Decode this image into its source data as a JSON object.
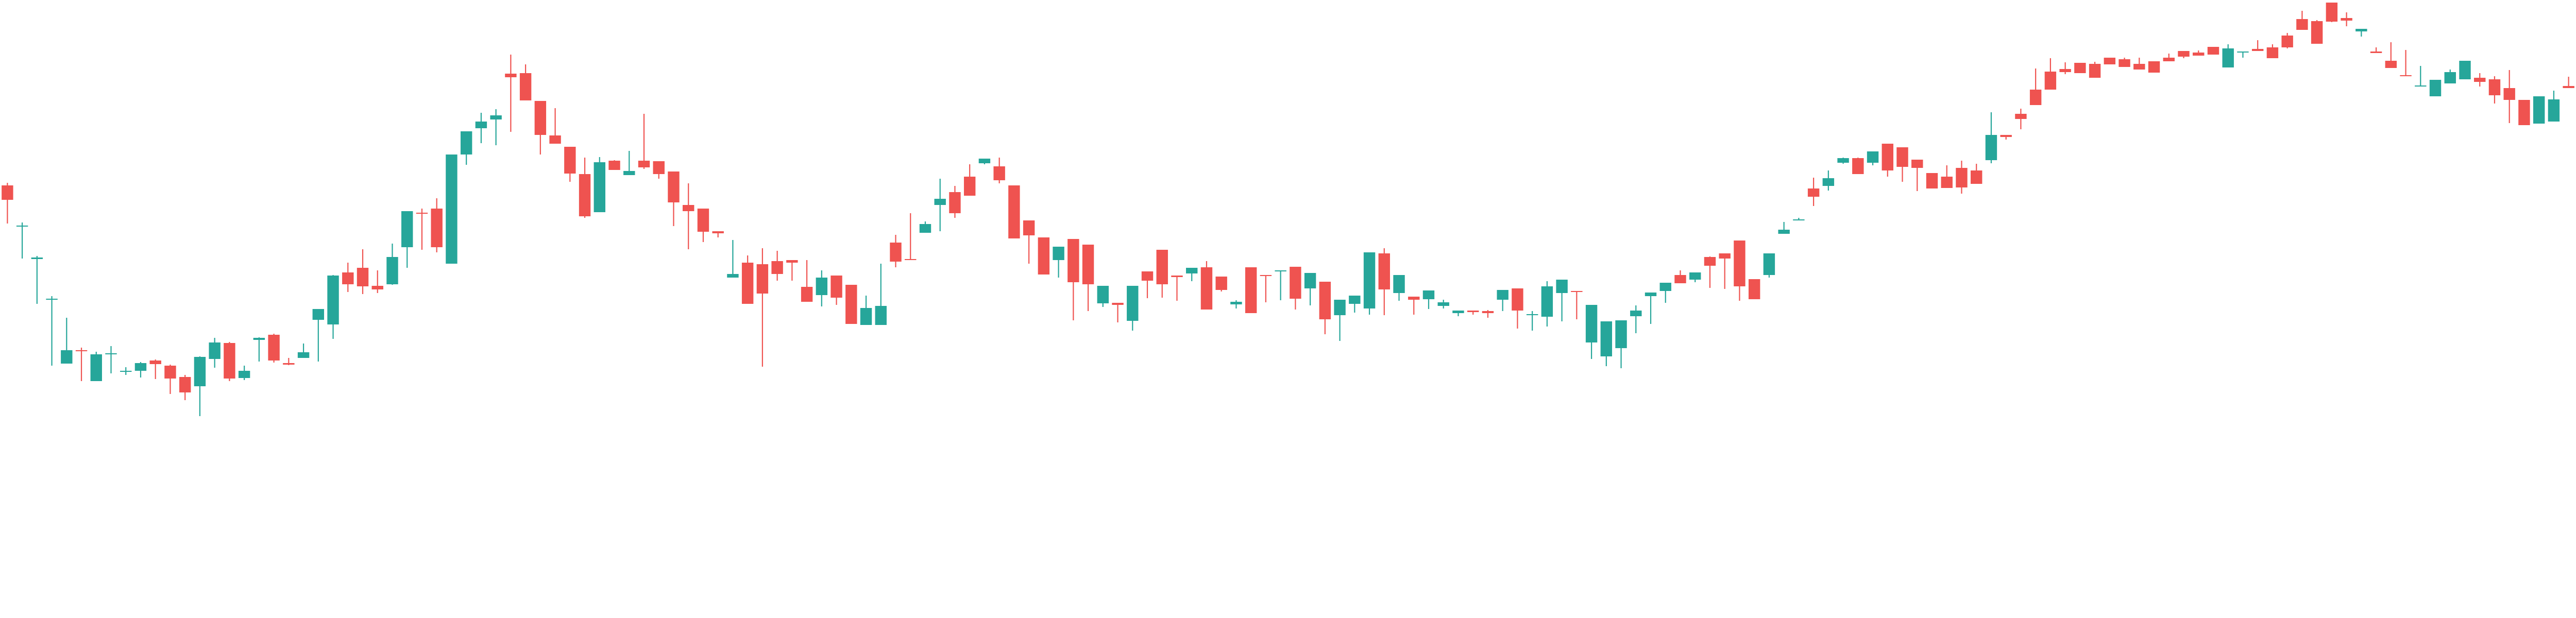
{
  "chart_data": {
    "type": "candlestick",
    "title": "",
    "xlabel": "",
    "ylabel": "",
    "grid": false,
    "legend": "none",
    "ylim": [
      0,
      1200
    ],
    "colors": {
      "up": "#26a69a",
      "down": "#ef5350",
      "background": "#ffffff"
    },
    "series": [
      {
        "candles": [
          [
            360,
            388,
            434,
            355
          ],
          [
            440,
            438,
            502,
            432
          ],
          [
            503,
            500,
            590,
            497
          ],
          [
            582,
            580,
            710,
            575
          ],
          [
            706,
            680,
            692,
            617
          ],
          [
            680,
            680,
            740,
            675
          ],
          [
            740,
            688,
            737,
            683
          ],
          [
            688,
            686,
            725,
            672
          ],
          [
            721,
            720,
            728,
            713
          ],
          [
            720,
            705,
            733,
            703
          ],
          [
            700,
            707,
            736,
            698
          ],
          [
            710,
            735,
            765,
            708
          ],
          [
            732,
            762,
            777,
            728
          ],
          [
            750,
            693,
            808,
            692
          ],
          [
            697,
            665,
            714,
            656
          ],
          [
            666,
            735,
            740,
            664
          ],
          [
            734,
            720,
            738,
            710
          ],
          [
            660,
            656,
            702,
            655
          ],
          [
            650,
            700,
            704,
            648
          ],
          [
            705,
            708,
            709,
            695
          ],
          [
            695,
            684,
            695,
            667
          ],
          [
            621,
            600,
            702,
            614
          ],
          [
            630,
            535,
            658,
            534
          ],
          [
            529,
            552,
            567,
            510
          ],
          [
            520,
            556,
            571,
            484
          ],
          [
            555,
            562,
            569,
            525
          ],
          [
            552,
            499,
            553,
            473
          ],
          [
            480,
            410,
            520,
            478
          ],
          [
            413,
            415,
            405,
            485
          ],
          [
            405,
            480,
            490,
            385
          ],
          [
            512,
            300,
            300,
            510
          ],
          [
            300,
            255,
            255,
            320
          ],
          [
            249,
            236,
            278,
            219
          ],
          [
            232,
            224,
            282,
            212
          ],
          [
            143,
            150,
            106,
            256
          ],
          [
            142,
            195,
            190,
            125
          ],
          [
            196,
            262,
            227,
            300
          ],
          [
            263,
            279,
            210,
            271
          ],
          [
            285,
            337,
            318,
            353
          ],
          [
            338,
            420,
            306,
            423
          ],
          [
            412,
            315,
            360,
            305
          ],
          [
            312,
            330,
            317,
            311
          ],
          [
            340,
            332,
            293,
            328
          ],
          [
            312,
            325,
            221,
            328
          ],
          [
            313,
            338,
            347,
            317
          ],
          [
            333,
            393,
            346,
            439
          ],
          [
            398,
            410,
            356,
            484
          ],
          [
            405,
            450,
            422,
            470
          ],
          [
            449,
            453,
            453,
            461
          ],
          [
            539,
            532,
            466,
            473
          ],
          [
            510,
            590,
            496,
            536
          ],
          [
            513,
            570,
            482,
            712
          ],
          [
            507,
            532,
            487,
            545
          ],
          [
            505,
            510,
            525,
            545
          ],
          [
            557,
            586,
            505,
            584
          ],
          [
            573,
            539,
            525,
            595
          ],
          [
            535,
            578,
            592,
            583
          ],
          [
            553,
            629,
            605,
            618
          ],
          [
            631,
            598,
            630,
            574
          ],
          [
            631,
            594,
            596,
            512
          ],
          [
            471,
            508,
            519,
            456
          ],
          [
            503,
            505,
            423,
            414
          ],
          [
            452,
            435,
            430,
            433
          ],
          [
            398,
            386,
            449,
            347
          ],
          [
            373,
            414,
            361,
            423
          ],
          [
            343,
            380,
            347,
            319
          ],
          [
            317,
            308,
            319,
            318
          ],
          [
            323,
            350,
            306,
            356
          ],
          [
            360,
            463,
            421,
            453
          ],
          [
            428,
            457,
            506,
            512
          ],
          [
            461,
            533,
            493,
            520
          ],
          [
            505,
            479,
            539,
            481
          ],
          [
            464,
            548,
            622,
            532
          ],
          [
            475,
            552,
            504,
            604
          ],
          [
            589,
            555,
            596,
            575
          ],
          [
            588,
            592,
            626,
            616
          ],
          [
            623,
            555,
            642,
            574
          ],
          [
            527,
            545,
            579,
            536
          ],
          [
            485,
            552,
            578,
            570
          ],
          [
            535,
            538,
            535,
            584
          ],
          [
            531,
            520,
            546,
            529
          ],
          [
            519,
            601,
            507,
            536
          ],
          [
            537,
            563,
            563,
            566
          ],
          [
            591,
            586,
            599,
            583
          ],
          [
            519,
            608,
            555,
            594
          ],
          [
            534,
            536,
            587,
            536
          ],
          [
            527,
            525,
            583,
            535
          ],
          [
            518,
            580,
            574,
            601
          ],
          [
            560,
            530,
            593,
            560
          ],
          [
            547,
            620,
            649,
            610
          ],
          [
            612,
            582,
            592,
            662
          ],
          [
            590,
            574,
            607,
            602
          ],
          [
            599,
            490,
            611,
            551
          ],
          [
            492,
            562,
            482,
            612
          ],
          [
            569,
            534,
            584,
            577
          ],
          [
            576,
            582,
            583,
            611
          ],
          [
            581,
            564,
            600,
            569
          ],
          [
            594,
            587,
            599,
            582
          ],
          [
            608,
            603,
            614,
            606
          ],
          [
            603,
            606,
            609,
            611
          ],
          [
            604,
            608,
            602,
            617
          ],
          [
            582,
            563,
            597,
            604
          ],
          [
            560,
            603,
            638,
            613
          ],
          [
            611,
            610,
            604,
            642
          ],
          [
            615,
            556,
            546,
            634
          ],
          [
            569,
            543,
            551,
            624
          ],
          [
            565,
            566,
            620,
            616
          ],
          [
            665,
            592,
            697,
            690
          ],
          [
            692,
            624,
            685,
            711
          ],
          [
            676,
            622,
            640,
            715
          ],
          [
            614,
            603,
            647,
            593
          ],
          [
            575,
            568,
            573,
            629
          ],
          [
            565,
            549,
            556,
            588
          ],
          [
            534,
            550,
            525,
            529
          ],
          [
            543,
            529,
            548,
            529
          ],
          [
            499,
            516,
            498,
            559
          ],
          [
            492,
            502,
            504,
            561
          ],
          [
            467,
            556,
            475,
            584
          ],
          [
            542,
            581,
            572,
            578
          ],
          [
            534,
            492,
            539,
            494
          ],
          [
            454,
            446,
            448,
            431
          ],
          [
            428,
            426,
            428,
            423
          ],
          [
            366,
            382,
            345,
            400
          ],
          [
            361,
            346,
            331,
            370
          ],
          [
            316,
            307,
            306,
            318
          ],
          [
            307,
            338,
            306,
            333
          ],
          [
            316,
            294,
            321,
            317
          ],
          [
            279,
            331,
            309,
            343
          ],
          [
            286,
            324,
            353,
            353
          ],
          [
            310,
            326,
            324,
            371
          ],
          [
            336,
            366,
            345,
            363
          ],
          [
            343,
            365,
            351,
            321
          ],
          [
            326,
            364,
            312,
            376
          ],
          [
            331,
            357,
            352,
            318
          ],
          [
            311,
            262,
            317,
            218
          ],
          [
            262,
            266,
            262,
            271
          ],
          [
            221,
            231,
            211,
            251
          ],
          [
            174,
            204,
            193,
            133
          ],
          [
            139,
            174,
            153,
            113
          ],
          [
            134,
            140,
            121,
            144
          ],
          [
            122,
            142,
            141,
            122
          ],
          [
            124,
            151,
            121,
            120
          ],
          [
            112,
            125,
            124,
            118
          ],
          [
            115,
            130,
            125,
            112
          ],
          [
            124,
            135,
            126,
            112
          ],
          [
            119,
            141,
            126,
            121
          ],
          [
            112,
            119,
            104,
            117
          ],
          [
            99,
            110,
            113,
            106
          ],
          [
            102,
            108,
            108,
            98
          ],
          [
            91,
            106,
            101,
            106
          ],
          [
            131,
            94,
            107,
            86
          ],
          [
            102,
            100,
            112,
            104
          ],
          [
            95,
            99,
            78,
            86
          ],
          [
            92,
            113,
            86,
            97
          ],
          [
            69,
            92,
            64,
            94
          ],
          [
            37,
            58,
            21,
            45
          ],
          [
            41,
            85,
            39,
            55
          ],
          [
            5,
            42,
            21,
            43
          ],
          [
            35,
            40,
            51,
            24
          ],
          [
            61,
            56,
            64,
            71
          ],
          [
            100,
            103,
            92,
            93
          ],
          [
            118,
            132,
            82,
            108
          ],
          [
            146,
            146,
            97,
            141
          ],
          [
            167,
            166,
            128,
            150
          ],
          [
            187,
            155,
            158,
            169
          ],
          [
            162,
            140,
            135,
            136
          ],
          [
            154,
            118,
            149,
            151
          ],
          [
            151,
            159,
            142,
            168
          ],
          [
            154,
            185,
            201,
            148
          ],
          [
            171,
            194,
            239,
            136
          ],
          [
            194,
            243,
            210,
            238
          ],
          [
            240,
            187,
            188,
            239
          ],
          [
            236,
            193,
            176,
            220
          ],
          [
            167,
            171,
            149,
            168
          ]
        ]
      }
    ]
  }
}
